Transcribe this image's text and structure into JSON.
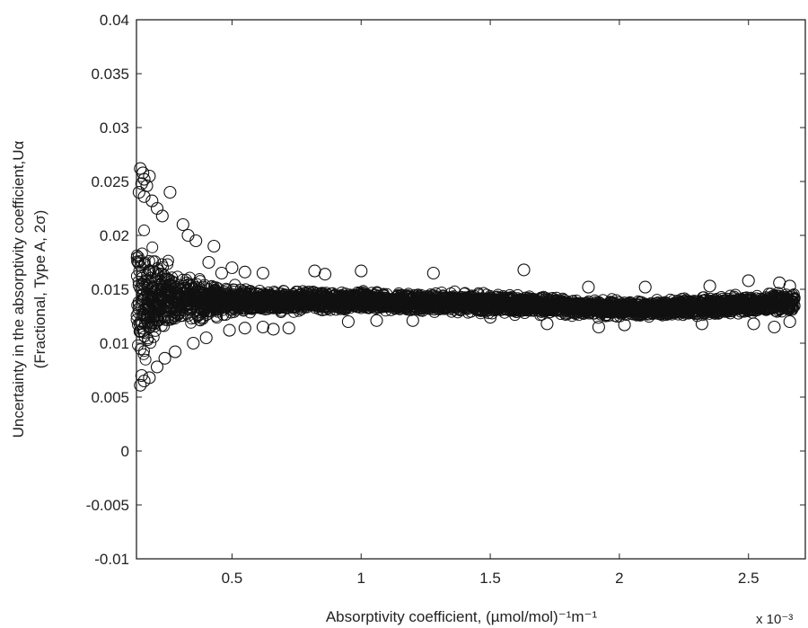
{
  "chart_data": {
    "type": "scatter",
    "marker": "open-circle",
    "marker_color": "#111111",
    "xlabel": "Absorptivity coefficient, (µmol/mol)⁻¹m⁻¹",
    "ylabel_line1": "Uncertainty in the absorptivity coefficient,Uα",
    "ylabel_line2": "(Fractional, Type A, 2σ)",
    "x_exponent_label": "x 10⁻³",
    "xlim": [
      0.00013,
      0.00272
    ],
    "ylim": [
      -0.01,
      0.04
    ],
    "x_ticks": [
      0.0005,
      0.001,
      0.0015,
      0.002,
      0.0025
    ],
    "x_tick_labels": [
      "0.5",
      "1",
      "1.5",
      "2",
      "2.5"
    ],
    "y_ticks": [
      -0.01,
      -0.005,
      0,
      0.005,
      0.01,
      0.015,
      0.02,
      0.025,
      0.03,
      0.035,
      0.04
    ],
    "y_tick_labels": [
      "-0.01",
      "-0.005",
      "0",
      "0.005",
      "0.01",
      "0.015",
      "0.02",
      "0.025",
      "0.03",
      "0.035",
      "0.04"
    ],
    "grid": false,
    "band": {
      "x": [
        0.00013,
        0.00015,
        0.0002,
        0.00025,
        0.0003,
        0.0004,
        0.0005,
        0.0006,
        0.0008,
        0.001,
        0.0012,
        0.0015,
        0.0018,
        0.002,
        0.0022,
        0.0025,
        0.00268
      ],
      "center": [
        0.0143,
        0.0143,
        0.0142,
        0.0141,
        0.014,
        0.0139,
        0.0139,
        0.0139,
        0.0139,
        0.0139,
        0.0138,
        0.0137,
        0.0134,
        0.0132,
        0.0133,
        0.0136,
        0.0138
      ],
      "half_width": [
        0.008,
        0.0075,
        0.0055,
        0.0042,
        0.0032,
        0.0022,
        0.0016,
        0.0014,
        0.0012,
        0.0011,
        0.0011,
        0.0011,
        0.001,
        0.001,
        0.001,
        0.0011,
        0.0012
      ],
      "x_max_data": 0.00268
    },
    "outliers": [
      [
        0.000145,
        0.0262
      ],
      [
        0.000155,
        0.0258
      ],
      [
        0.00016,
        0.0252
      ],
      [
        0.00015,
        0.0248
      ],
      [
        0.00017,
        0.0246
      ],
      [
        0.00018,
        0.0255
      ],
      [
        0.00014,
        0.024
      ],
      [
        0.00016,
        0.0236
      ],
      [
        0.00019,
        0.0232
      ],
      [
        0.00021,
        0.0225
      ],
      [
        0.00023,
        0.0218
      ],
      [
        0.00026,
        0.024
      ],
      [
        0.00031,
        0.021
      ],
      [
        0.00033,
        0.02
      ],
      [
        0.00036,
        0.0195
      ],
      [
        0.00043,
        0.019
      ],
      [
        0.00041,
        0.0175
      ],
      [
        0.00046,
        0.0165
      ],
      [
        0.0005,
        0.017
      ],
      [
        0.00055,
        0.0166
      ],
      [
        0.00062,
        0.0165
      ],
      [
        0.00082,
        0.0167
      ],
      [
        0.00086,
        0.0164
      ],
      [
        0.001,
        0.0167
      ],
      [
        0.00128,
        0.0165
      ],
      [
        0.00163,
        0.0168
      ],
      [
        0.00188,
        0.0152
      ],
      [
        0.0021,
        0.0152
      ],
      [
        0.00235,
        0.0153
      ],
      [
        0.0025,
        0.0158
      ],
      [
        0.00262,
        0.0156
      ],
      [
        0.00266,
        0.0153
      ],
      [
        0.000145,
        0.0061
      ],
      [
        0.00016,
        0.0065
      ],
      [
        0.00015,
        0.007
      ],
      [
        0.00018,
        0.0068
      ],
      [
        0.00021,
        0.0078
      ],
      [
        0.00024,
        0.0086
      ],
      [
        0.00028,
        0.0092
      ],
      [
        0.00035,
        0.01
      ],
      [
        0.0004,
        0.0105
      ],
      [
        0.00049,
        0.0112
      ],
      [
        0.00055,
        0.0114
      ],
      [
        0.00062,
        0.0115
      ],
      [
        0.00066,
        0.0113
      ],
      [
        0.00072,
        0.0114
      ],
      [
        0.00095,
        0.012
      ],
      [
        0.00106,
        0.0121
      ],
      [
        0.0012,
        0.0121
      ],
      [
        0.0015,
        0.0124
      ],
      [
        0.00172,
        0.0118
      ],
      [
        0.00192,
        0.0115
      ],
      [
        0.00202,
        0.0117
      ],
      [
        0.00232,
        0.0118
      ],
      [
        0.00252,
        0.0118
      ],
      [
        0.0026,
        0.0115
      ],
      [
        0.00266,
        0.012
      ]
    ]
  }
}
